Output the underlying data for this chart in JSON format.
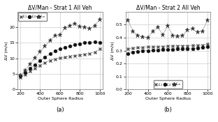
{
  "title_a": "ΔV/Man - Strat 1 All Veh",
  "title_b": "ΔV/Man - Strat 2 All Veh",
  "xlabel": "Outer Sphere Radius",
  "ylabel": "ΔV (m/s)",
  "label_a": "(a)",
  "label_b": "(b)",
  "x": [
    200,
    250,
    300,
    350,
    400,
    450,
    500,
    550,
    600,
    650,
    700,
    750,
    800,
    850,
    900,
    950,
    1000
  ],
  "L1_a": [
    3.8,
    4.8,
    5.8,
    6.8,
    7.8,
    8.6,
    9.3,
    9.8,
    10.1,
    10.4,
    10.7,
    10.9,
    11.1,
    11.3,
    11.6,
    12.0,
    13.0
  ],
  "L2_a": [
    4.3,
    5.5,
    6.8,
    8.0,
    9.2,
    10.4,
    11.4,
    12.3,
    13.0,
    13.5,
    13.9,
    14.3,
    14.7,
    15.0,
    15.1,
    15.2,
    15.1
  ],
  "Linf_a": [
    4.5,
    6.2,
    8.2,
    10.2,
    12.1,
    14.0,
    15.8,
    17.3,
    17.5,
    19.8,
    20.5,
    21.2,
    20.2,
    20.0,
    19.5,
    20.5,
    22.5
  ],
  "L1_b": [
    0.315,
    0.318,
    0.322,
    0.326,
    0.328,
    0.329,
    0.33,
    0.332,
    0.334,
    0.335,
    0.336,
    0.337,
    0.337,
    0.338,
    0.34,
    0.342,
    0.35
  ],
  "L2_b": [
    0.277,
    0.288,
    0.294,
    0.298,
    0.3,
    0.302,
    0.304,
    0.306,
    0.308,
    0.309,
    0.311,
    0.312,
    0.313,
    0.315,
    0.318,
    0.322,
    0.328
  ],
  "Linf_b": [
    0.535,
    0.45,
    0.415,
    0.405,
    0.4,
    0.45,
    0.482,
    0.42,
    0.49,
    0.418,
    0.408,
    0.415,
    0.46,
    0.468,
    0.44,
    0.45,
    0.535
  ],
  "ylim_a": [
    0,
    25
  ],
  "ylim_b": [
    0.0,
    0.6
  ],
  "yticks_a": [
    0,
    5,
    10,
    15,
    20
  ],
  "yticks_b": [
    0.0,
    0.1,
    0.2,
    0.3,
    0.4,
    0.5
  ],
  "xlim": [
    175,
    1030
  ],
  "xticks": [
    200,
    400,
    600,
    800,
    1000
  ],
  "line_color": "#aaaaaa",
  "color_L1": "#555555",
  "color_L2": "#111111",
  "color_Linf": "#333333",
  "legend_labels": [
    "$L_1$",
    "$L_2$",
    "$L_\\infty$"
  ]
}
